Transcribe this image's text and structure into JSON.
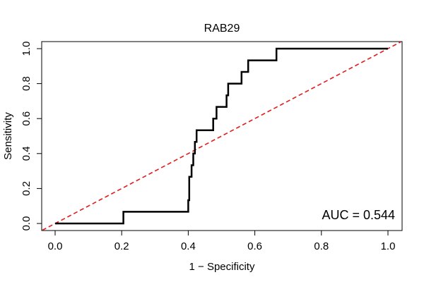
{
  "chart_data": {
    "type": "line",
    "title": "RAB29",
    "xlabel": "1 − Specificity",
    "ylabel": "Sensitivity",
    "xlim": [
      0,
      1
    ],
    "ylim": [
      0,
      1
    ],
    "xticks": [
      "0.0",
      "0.2",
      "0.4",
      "0.6",
      "0.8",
      "1.0"
    ],
    "yticks": [
      "0.0",
      "0.2",
      "0.4",
      "0.6",
      "0.8",
      "1.0"
    ],
    "annotation": "AUC = 0.544",
    "series": [
      {
        "name": "ROC curve",
        "style": "step",
        "color": "#000000",
        "x": [
          0.0,
          0.205,
          0.205,
          0.4,
          0.4,
          0.403,
          0.403,
          0.41,
          0.41,
          0.415,
          0.415,
          0.42,
          0.42,
          0.425,
          0.425,
          0.475,
          0.475,
          0.485,
          0.485,
          0.515,
          0.515,
          0.52,
          0.52,
          0.56,
          0.56,
          0.58,
          0.58,
          0.665,
          0.665,
          1.0
        ],
        "y": [
          0.0,
          0.0,
          0.067,
          0.067,
          0.133,
          0.133,
          0.267,
          0.267,
          0.333,
          0.333,
          0.4,
          0.4,
          0.467,
          0.467,
          0.533,
          0.533,
          0.6,
          0.6,
          0.667,
          0.667,
          0.733,
          0.733,
          0.8,
          0.8,
          0.867,
          0.867,
          0.933,
          0.933,
          1.0,
          1.0
        ]
      },
      {
        "name": "reference",
        "style": "dashed",
        "color": "#e41a1c",
        "x": [
          0,
          1
        ],
        "y": [
          0,
          1
        ]
      }
    ]
  }
}
